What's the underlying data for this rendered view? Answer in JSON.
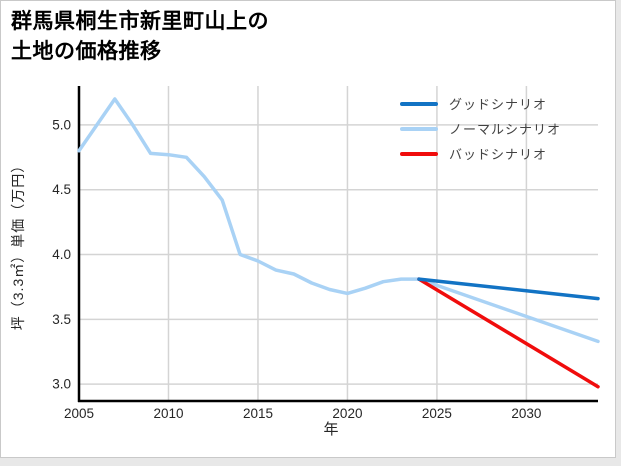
{
  "page": {
    "background": "#e8e8e8",
    "card_background": "#ffffff",
    "card_border": "#c9c9c9"
  },
  "chart_data": {
    "type": "line",
    "title_line1": "群馬県桐生市新里町山上の",
    "title_line2": "土地の価格推移",
    "xlabel": "年",
    "ylabel": "坪（3.3㎡）単価（万円）",
    "xlim": [
      2005,
      2034
    ],
    "ylim": [
      2.87,
      5.3
    ],
    "grid": true,
    "legend_position": "upper-right",
    "x_ticks": [
      2005,
      2010,
      2015,
      2020,
      2025,
      2030
    ],
    "x_tick_labels": [
      "2005",
      "2010",
      "2015",
      "2020",
      "2025",
      "2030"
    ],
    "y_ticks": [
      3.0,
      3.5,
      4.0,
      4.5,
      5.0
    ],
    "y_tick_labels": [
      "3.0",
      "3.5",
      "4.0",
      "4.5",
      "5.0"
    ],
    "grid_color": "#d4d4d4",
    "axis_color": "#000000",
    "tick_label_color": "#262626",
    "series": [
      {
        "name": "グッドシナリオ",
        "color": "#1273c4",
        "x": [
          2024,
          2034
        ],
        "values": [
          3.81,
          3.66
        ]
      },
      {
        "name": "ノーマルシナリオ",
        "color": "#a9d2f5",
        "x": [
          2005,
          2006,
          2007,
          2008,
          2009,
          2010,
          2011,
          2012,
          2013,
          2014,
          2015,
          2016,
          2017,
          2018,
          2019,
          2020,
          2021,
          2022,
          2023,
          2024,
          2034
        ],
        "values": [
          4.8,
          5.0,
          5.2,
          5.0,
          4.78,
          4.77,
          4.75,
          4.6,
          4.42,
          4.0,
          3.95,
          3.88,
          3.85,
          3.78,
          3.73,
          3.7,
          3.74,
          3.79,
          3.81,
          3.81,
          3.33
        ]
      },
      {
        "name": "バッドシナリオ",
        "color": "#f00c0c",
        "x": [
          2024,
          2034
        ],
        "values": [
          3.81,
          2.98
        ]
      }
    ]
  }
}
